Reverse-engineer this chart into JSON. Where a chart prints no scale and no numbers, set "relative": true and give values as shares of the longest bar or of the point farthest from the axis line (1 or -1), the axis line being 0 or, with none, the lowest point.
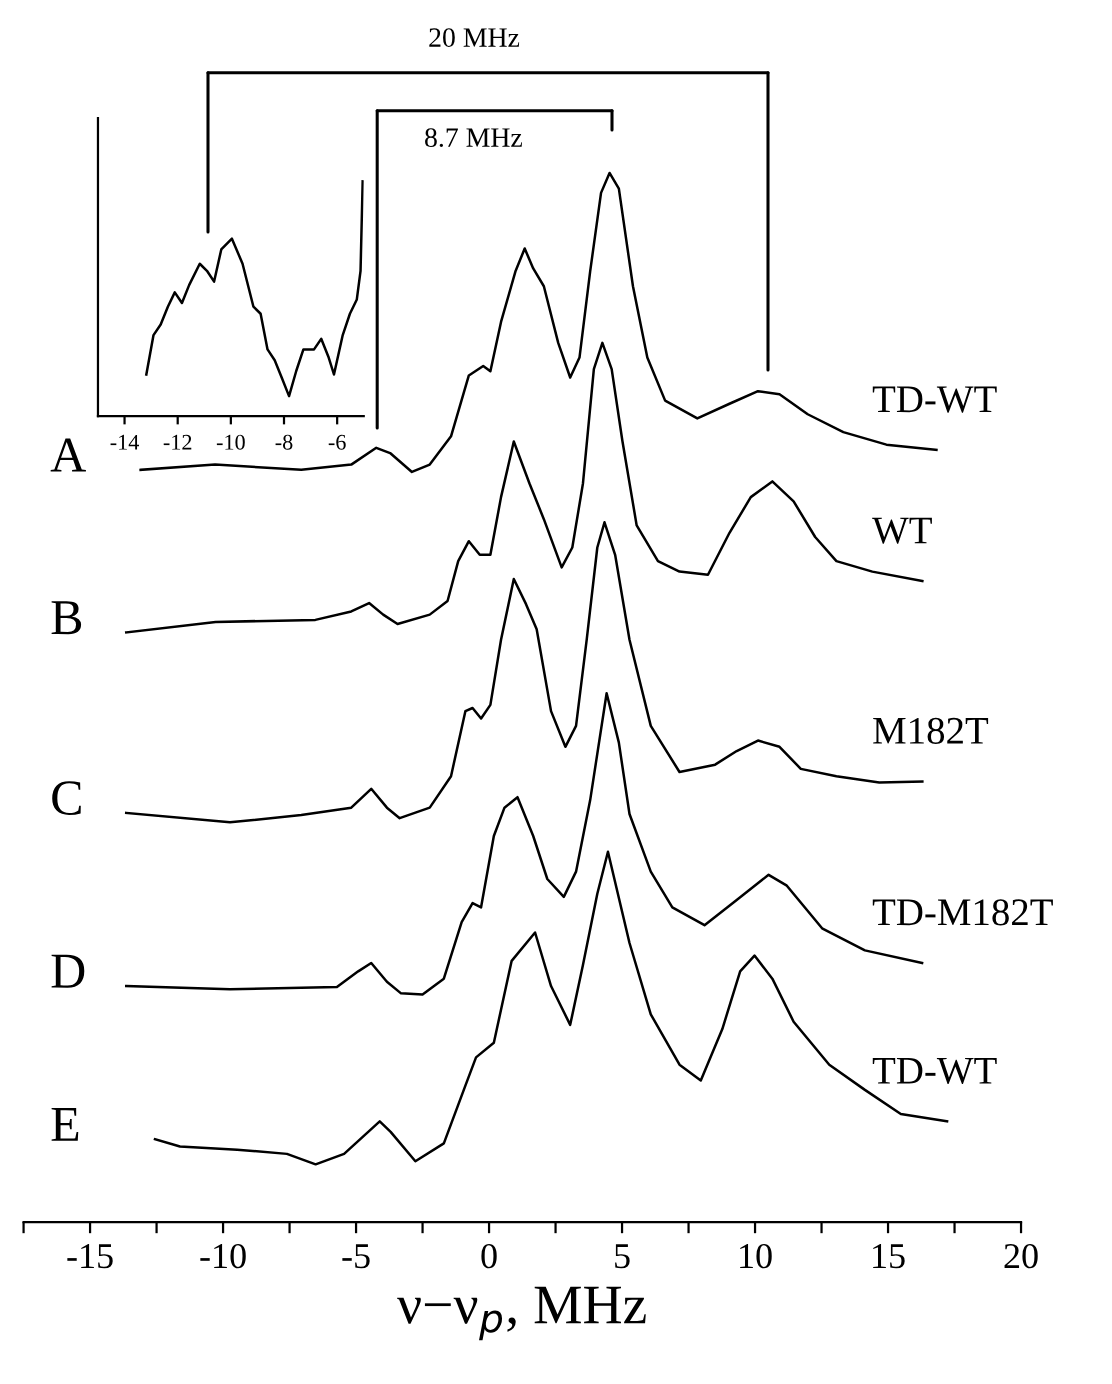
{
  "chart_data": [
    {
      "type": "line",
      "relative": true,
      "xlabel": "ν−ν$_{p}$, MHz",
      "xlim": [
        -17.5,
        20
      ],
      "tick_labels": "x",
      "xticks": [
        {
          "value": -17.5,
          "label": null
        },
        -15,
        {
          "value": -12.5,
          "label": null
        },
        -10,
        {
          "value": -7.5,
          "label": null
        },
        -5,
        {
          "value": -2.5,
          "label": null
        },
        0,
        {
          "value": 2.5,
          "label": null
        },
        5,
        {
          "value": 7.5,
          "label": null
        },
        10,
        {
          "value": 12.5,
          "label": null
        },
        15,
        {
          "value": 17.5,
          "label": null
        },
        20
      ],
      "annotations": [
        "A",
        "B",
        "C",
        "D",
        "E",
        "20 MHz",
        "8.7 MHz"
      ],
      "series": [
        {
          "name": "TD-WT",
          "color": "#000000",
          "x": [
            -13.1,
            -10.3,
            -7.06,
            -5.18,
            -4.24,
            -3.72,
            -2.9,
            -2.23,
            -1.43,
            -0.76,
            -0.22,
            0.05,
            0.45,
            0.99,
            1.34,
            1.66,
            2.06,
            2.6,
            3.05,
            3.4,
            3.8,
            4.21,
            4.53,
            4.88,
            5.41,
            5.95,
            6.62,
            7.83,
            9.04,
            10.11,
            10.92,
            11.98,
            13.32,
            14.94,
            16.82
          ],
          "values": [
            0.717,
            0.722,
            0.717,
            0.722,
            0.738,
            0.733,
            0.715,
            0.722,
            0.749,
            0.807,
            0.816,
            0.811,
            0.858,
            0.906,
            0.928,
            0.909,
            0.892,
            0.838,
            0.805,
            0.824,
            0.906,
            0.981,
            1.0,
            0.985,
            0.892,
            0.824,
            0.783,
            0.766,
            0.78,
            0.792,
            0.789,
            0.77,
            0.753,
            0.741,
            0.736
          ]
        },
        {
          "name": "WT",
          "color": "#000000",
          "x": [
            -13.64,
            -10.28,
            -6.53,
            -5.18,
            -4.51,
            -3.98,
            -3.44,
            -2.23,
            -1.56,
            -1.16,
            -0.76,
            -0.35,
            0.05,
            0.45,
            0.93,
            1.52,
            2.06,
            2.73,
            3.13,
            3.53,
            3.94,
            4.26,
            4.61,
            5.01,
            5.55,
            6.35,
            7.16,
            8.23,
            9.04,
            9.84,
            10.65,
            11.45,
            12.26,
            13.06,
            14.41,
            16.29
          ],
          "values": [
            0.562,
            0.572,
            0.574,
            0.582,
            0.59,
            0.579,
            0.57,
            0.579,
            0.592,
            0.63,
            0.649,
            0.636,
            0.636,
            0.691,
            0.744,
            0.704,
            0.67,
            0.624,
            0.643,
            0.704,
            0.813,
            0.838,
            0.813,
            0.745,
            0.664,
            0.63,
            0.62,
            0.617,
            0.657,
            0.691,
            0.706,
            0.687,
            0.653,
            0.63,
            0.62,
            0.611
          ]
        },
        {
          "name": "M182T",
          "color": "#000000",
          "x": [
            -13.64,
            -9.74,
            -7.06,
            -5.18,
            -4.43,
            -3.84,
            -3.36,
            -2.23,
            -1.43,
            -0.89,
            -0.62,
            -0.3,
            0.05,
            0.45,
            0.93,
            1.39,
            1.79,
            2.33,
            2.87,
            3.27,
            3.67,
            4.07,
            4.34,
            4.74,
            5.28,
            6.08,
            7.16,
            8.5,
            9.31,
            10.11,
            10.92,
            11.72,
            13.06,
            14.67,
            16.29
          ],
          "values": [
            0.39,
            0.381,
            0.388,
            0.395,
            0.413,
            0.395,
            0.385,
            0.395,
            0.425,
            0.487,
            0.49,
            0.48,
            0.493,
            0.555,
            0.613,
            0.589,
            0.565,
            0.487,
            0.453,
            0.473,
            0.555,
            0.643,
            0.667,
            0.636,
            0.555,
            0.473,
            0.429,
            0.436,
            0.449,
            0.459,
            0.453,
            0.432,
            0.425,
            0.419,
            0.42
          ]
        },
        {
          "name": "TD-M182T",
          "color": "#000000",
          "x": [
            -13.64,
            -9.74,
            -5.72,
            -4.92,
            -4.43,
            -3.84,
            -3.31,
            -2.5,
            -1.7,
            -1.03,
            -0.62,
            -0.3,
            0.18,
            0.58,
            1.07,
            1.66,
            2.19,
            2.81,
            3.27,
            3.8,
            4.42,
            4.88,
            5.28,
            6.08,
            6.89,
            8.1,
            9.31,
            10.51,
            11.18,
            12.52,
            14.13,
            16.28
          ],
          "values": [
            0.225,
            0.222,
            0.224,
            0.239,
            0.247,
            0.229,
            0.218,
            0.217,
            0.232,
            0.286,
            0.304,
            0.3,
            0.368,
            0.395,
            0.405,
            0.368,
            0.327,
            0.31,
            0.334,
            0.402,
            0.504,
            0.457,
            0.389,
            0.334,
            0.3,
            0.283,
            0.307,
            0.331,
            0.321,
            0.28,
            0.259,
            0.247
          ]
        },
        {
          "name": "TD-WT",
          "color": "#000000",
          "x": [
            -12.56,
            -11.62,
            -9.47,
            -7.6,
            -6.52,
            -5.45,
            -4.11,
            -3.7,
            -2.77,
            -1.7,
            -0.89,
            -0.49,
            0.18,
            0.85,
            1.73,
            2.33,
            3.05,
            3.53,
            4.07,
            4.47,
            5.28,
            6.08,
            7.16,
            7.96,
            8.77,
            9.44,
            9.98,
            10.65,
            11.45,
            12.79,
            14.13,
            15.48,
            17.22
          ],
          "values": [
            0.079,
            0.072,
            0.069,
            0.065,
            0.055,
            0.065,
            0.096,
            0.086,
            0.058,
            0.075,
            0.13,
            0.157,
            0.171,
            0.249,
            0.276,
            0.225,
            0.188,
            0.245,
            0.313,
            0.353,
            0.266,
            0.198,
            0.15,
            0.135,
            0.184,
            0.239,
            0.254,
            0.232,
            0.191,
            0.15,
            0.126,
            0.103,
            0.096
          ]
        }
      ]
    },
    {
      "type": "line",
      "relative": true,
      "xlim": [
        -15,
        -5
      ],
      "xticks": [
        -14,
        -12,
        -10,
        -8,
        -6
      ],
      "tick_labels": "x",
      "series": [
        {
          "color": "#000000",
          "x": [
            -13.18,
            -12.91,
            -12.64,
            -12.37,
            -12.11,
            -11.84,
            -11.57,
            -11.17,
            -10.9,
            -10.63,
            -10.36,
            -9.96,
            -9.56,
            -9.15,
            -8.88,
            -8.62,
            -8.35,
            -8.08,
            -7.81,
            -7.54,
            -7.27,
            -6.87,
            -6.6,
            -6.33,
            -6.12,
            -5.79,
            -5.52,
            -5.26,
            -5.12,
            -5.04
          ],
          "values": [
            0.177,
            0.345,
            0.39,
            0.466,
            0.527,
            0.482,
            0.558,
            0.649,
            0.619,
            0.573,
            0.71,
            0.756,
            0.649,
            0.466,
            0.436,
            0.284,
            0.238,
            0.162,
            0.085,
            0.192,
            0.284,
            0.284,
            0.329,
            0.253,
            0.177,
            0.345,
            0.436,
            0.497,
            0.619,
            1.0
          ]
        }
      ]
    }
  ]
}
